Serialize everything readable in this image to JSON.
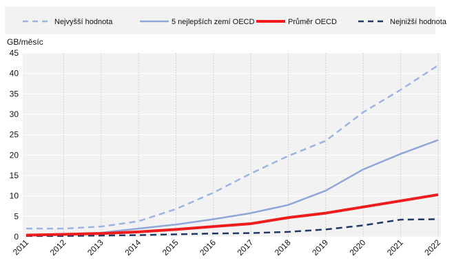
{
  "chart_data": {
    "type": "line",
    "ylabel": "GB/měsíc",
    "ylim": [
      0,
      45
    ],
    "yticks": [
      0,
      5,
      10,
      15,
      20,
      25,
      30,
      35,
      40,
      45
    ],
    "x": [
      "2011",
      "2012",
      "2013",
      "2014",
      "2015",
      "2016",
      "2017",
      "2018",
      "2019",
      "2020",
      "2021",
      "2022"
    ],
    "grid": true,
    "legend_position": "top",
    "series": [
      {
        "name": "Nejvyšší hodnota",
        "color": "#9db4e0",
        "style": "dashed",
        "values": [
          2.0,
          2.0,
          2.5,
          3.8,
          6.8,
          10.8,
          15.5,
          19.8,
          23.5,
          30.5,
          36.0,
          42.0
        ]
      },
      {
        "name": "5 nejlepších zemí OECD",
        "color": "#8fa7d8",
        "style": "solid",
        "values": [
          0.5,
          0.6,
          1.0,
          2.0,
          3.0,
          4.3,
          5.8,
          7.8,
          11.3,
          16.5,
          20.3,
          23.7
        ]
      },
      {
        "name": "Průměr OECD",
        "color": "#ee1c1c",
        "style": "solid-thick",
        "values": [
          0.4,
          0.6,
          0.8,
          1.2,
          1.8,
          2.5,
          3.2,
          4.7,
          5.8,
          7.3,
          8.8,
          10.3
        ]
      },
      {
        "name": "Nejnižší hodnota",
        "color": "#1f3864",
        "style": "dashed",
        "values": [
          0.2,
          0.2,
          0.3,
          0.4,
          0.6,
          0.8,
          0.9,
          1.2,
          1.8,
          2.8,
          4.2,
          4.3
        ]
      }
    ]
  }
}
